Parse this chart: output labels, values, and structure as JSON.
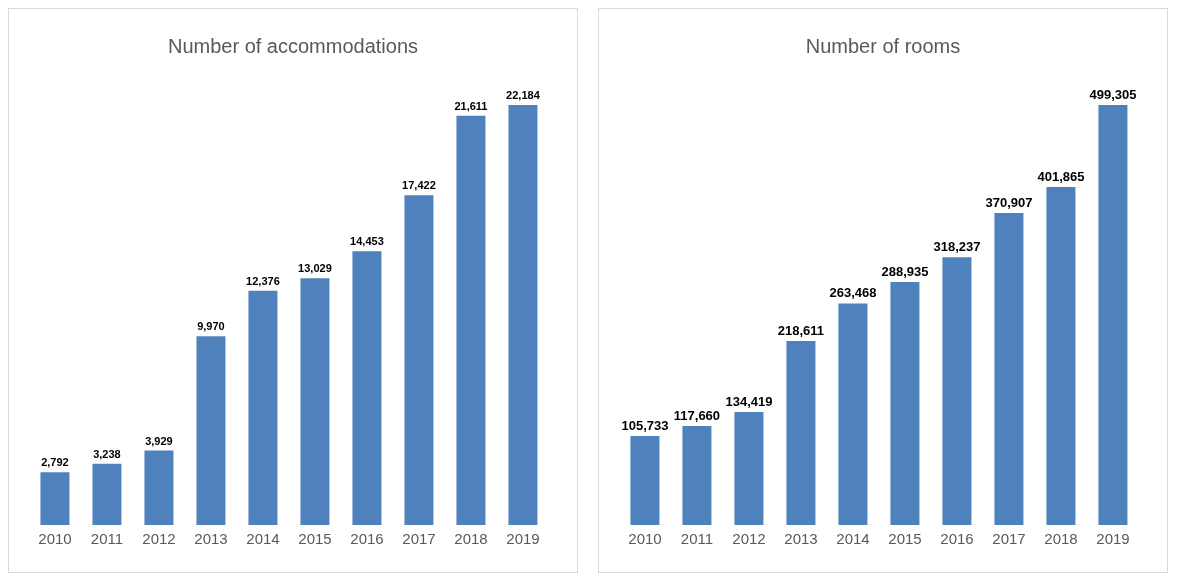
{
  "chart_data": [
    {
      "type": "bar",
      "title": "Number of accommodations",
      "categories": [
        "2010",
        "2011",
        "2012",
        "2013",
        "2014",
        "2015",
        "2016",
        "2017",
        "2018",
        "2019"
      ],
      "values": [
        2792,
        3238,
        3929,
        9970,
        12376,
        13029,
        14453,
        17422,
        21611,
        22184
      ],
      "color": "#4f81bd",
      "value_labels": [
        "2,792",
        "3,238",
        "3,929",
        "9,970",
        "12,376",
        "13,029",
        "14,453",
        "17,422",
        "21,611",
        "22,184"
      ]
    },
    {
      "type": "bar",
      "title": "Number of rooms",
      "categories": [
        "2010",
        "2011",
        "2012",
        "2013",
        "2014",
        "2015",
        "2016",
        "2017",
        "2018",
        "2019"
      ],
      "values": [
        105733,
        117660,
        134419,
        218611,
        263468,
        288935,
        318237,
        370907,
        401865,
        499305
      ],
      "color": "#4f81bd",
      "value_labels": [
        "105,733",
        "117,660",
        "134,419",
        "218,611",
        "263,468",
        "288,935",
        "318,237",
        "370,907",
        "401,865",
        "499,305"
      ]
    }
  ]
}
